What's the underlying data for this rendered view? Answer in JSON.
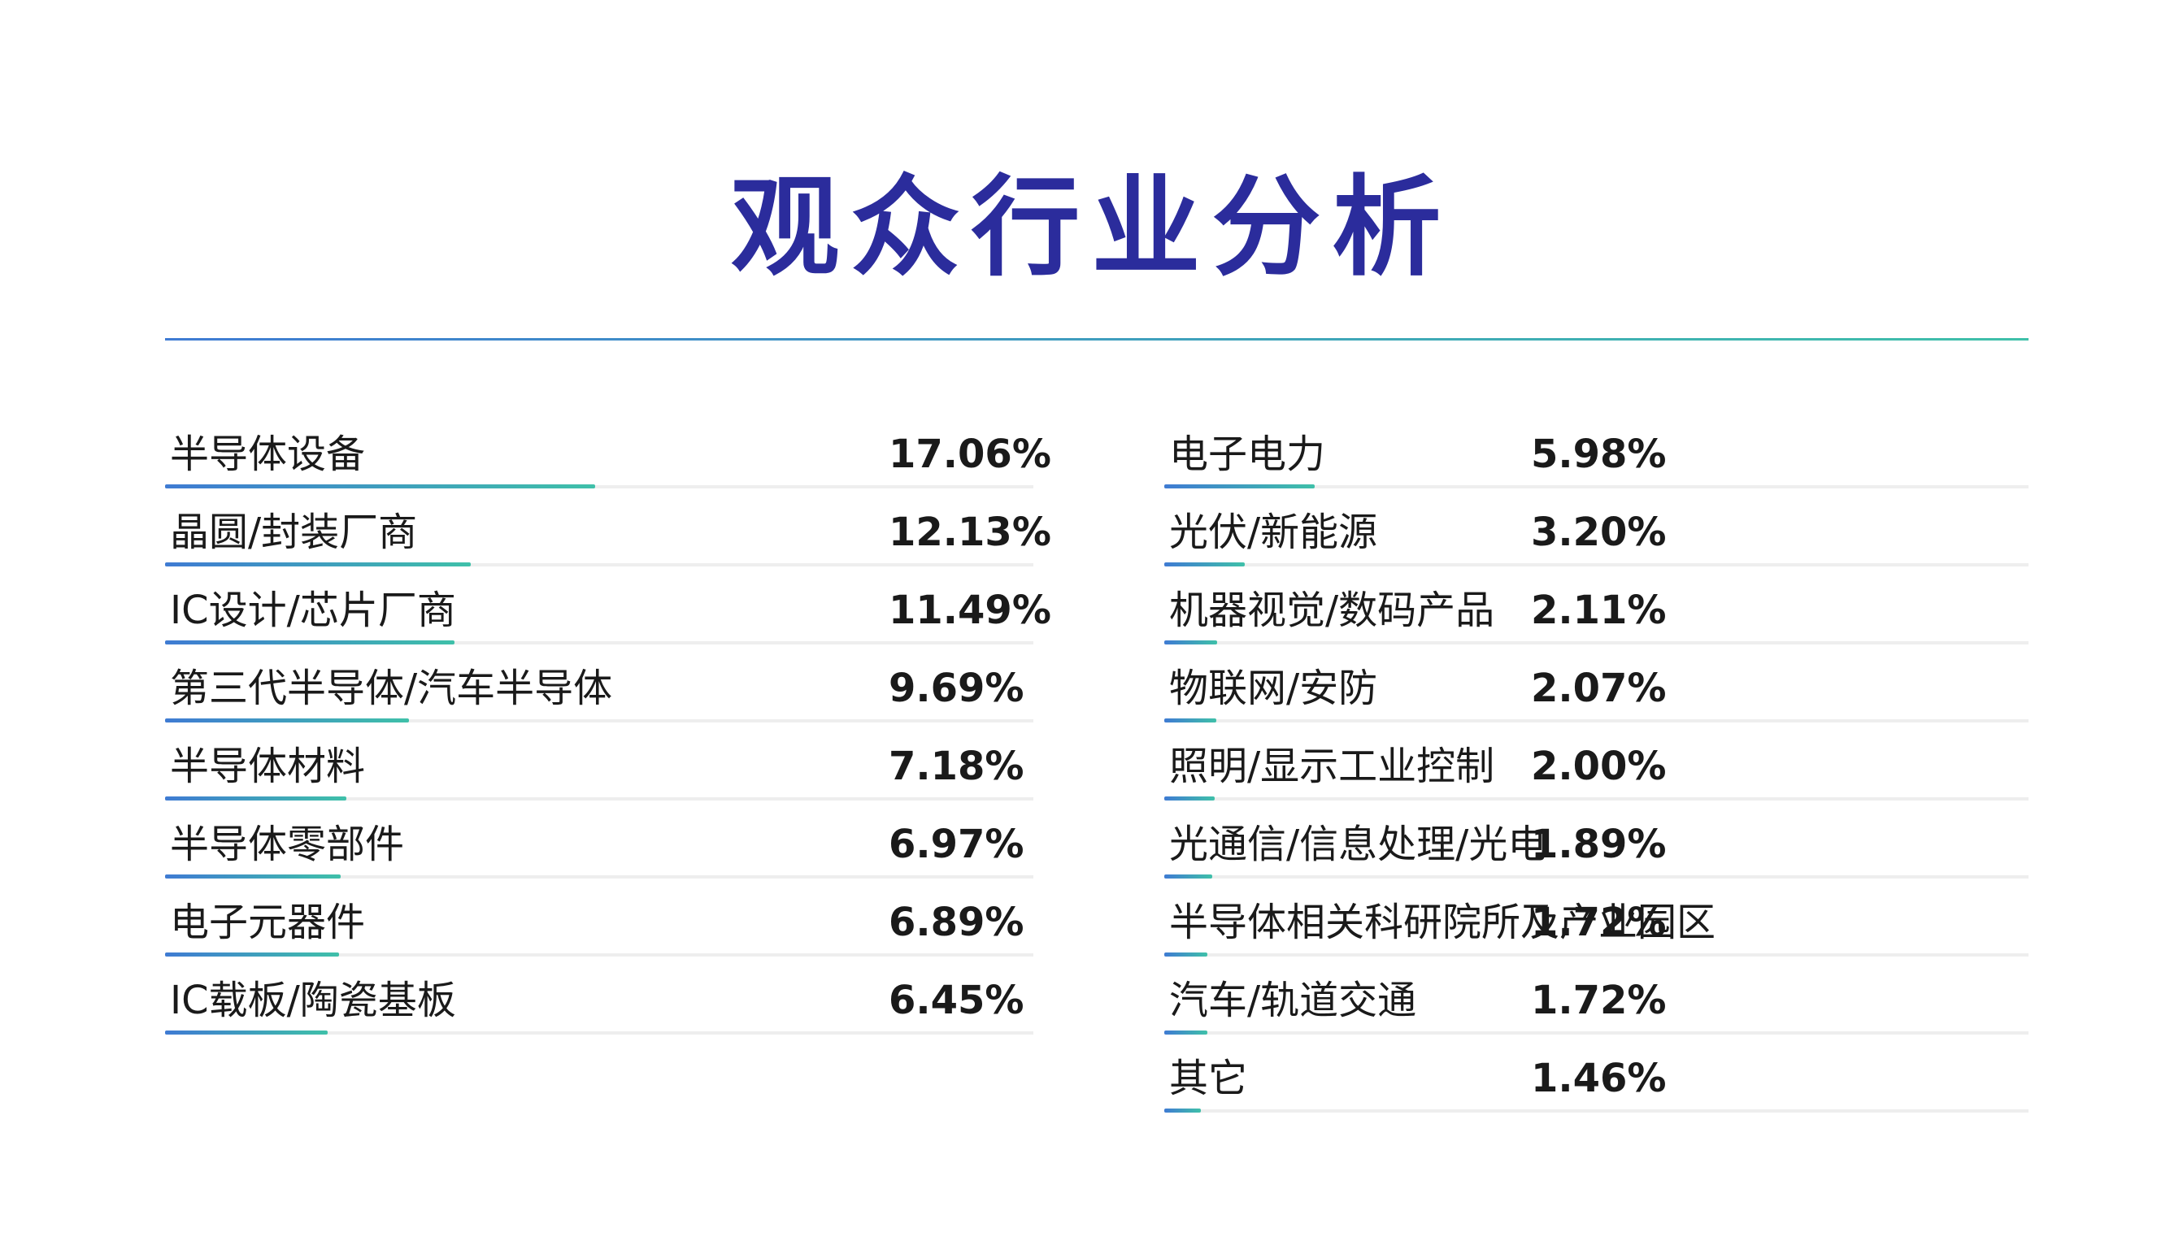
{
  "title": "观众行业分析",
  "colors": {
    "title": "#2b2c9c",
    "bar_start": "#3f7bd3",
    "bar_end": "#3fc0a9",
    "track": "#eeeeee",
    "text": "#1a1a1a"
  },
  "chart_data": {
    "type": "bar",
    "title": "观众行业分析",
    "unit": "%",
    "columns": [
      {
        "items": [
          {
            "label": "半导体设备",
            "value": 17.06,
            "display": "17.06%"
          },
          {
            "label": "晶圆/封装厂商",
            "value": 12.13,
            "display": "12.13%"
          },
          {
            "label": "IC设计/芯片厂商",
            "value": 11.49,
            "display": "11.49%"
          },
          {
            "label": "第三代半导体/汽车半导体",
            "value": 9.69,
            "display": "9.69%"
          },
          {
            "label": "半导体材料",
            "value": 7.18,
            "display": "7.18%"
          },
          {
            "label": "半导体零部件",
            "value": 6.97,
            "display": "6.97%"
          },
          {
            "label": " 电子元器件",
            "value": 6.89,
            "display": "6.89%"
          },
          {
            "label": "IC载板/陶瓷基板",
            "value": 6.45,
            "display": "6.45%"
          }
        ]
      },
      {
        "items": [
          {
            "label": "电子电力",
            "value": 5.98,
            "display": "5.98%"
          },
          {
            "label": "光伏/新能源",
            "value": 3.2,
            "display": "3.20%"
          },
          {
            "label": "机器视觉/数码产品",
            "value": 2.11,
            "display": "2.11%"
          },
          {
            "label": "物联网/安防",
            "value": 2.07,
            "display": "2.07%"
          },
          {
            "label": "照明/显示工业控制",
            "value": 2.0,
            "display": "2.00%"
          },
          {
            "label": "光通信/信息处理/光电",
            "value": 1.89,
            "display": "1.89%"
          },
          {
            "label": "半导体相关科研院所及产业园区",
            "value": 1.72,
            "display": "1.72%"
          },
          {
            "label": "汽车/轨道交通",
            "value": 1.72,
            "display": "1.72%"
          },
          {
            "label": "其它",
            "value": 1.46,
            "display": "1.46%"
          }
        ]
      }
    ]
  }
}
